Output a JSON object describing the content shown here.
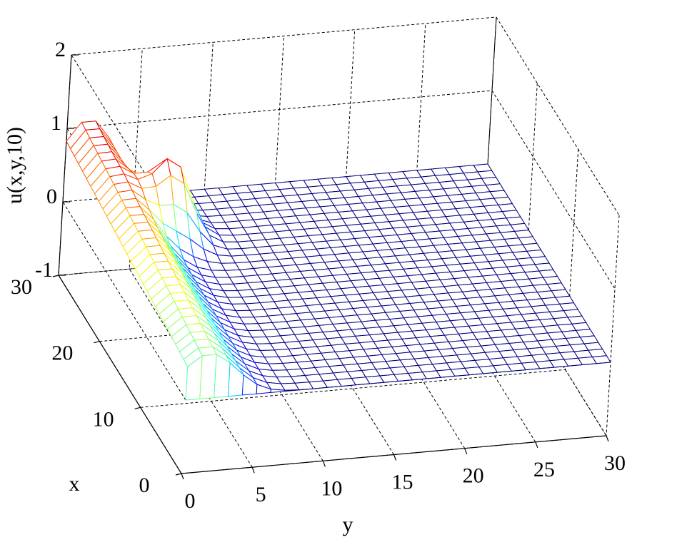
{
  "chart_data": {
    "type": "surface-mesh",
    "title": "",
    "xlabel": "x",
    "ylabel": "y",
    "zlabel": "u(x,y,10)",
    "xlim": [
      0,
      30
    ],
    "ylim": [
      0,
      30
    ],
    "zlim": [
      -1,
      2
    ],
    "x_ticks": [
      "0",
      "10",
      "20",
      "30"
    ],
    "y_ticks": [
      "0",
      "5",
      "10",
      "15",
      "20",
      "25",
      "30"
    ],
    "z_ticks": [
      "-1",
      "0",
      "1",
      "2"
    ],
    "grid": true,
    "colormap": "jet",
    "mesh_resolution": 30,
    "surface": {
      "baseline": 0,
      "ridge": {
        "along": "x",
        "y_center": 1.5,
        "y_width": 2.8,
        "peak": 1.1
      },
      "hump": {
        "x_center": 23,
        "y_center": 5.5,
        "sigma_x": 2.5,
        "sigma_y": 1.8,
        "peak": 1.0
      }
    },
    "colors": {
      "low": "#00008f",
      "mid": "#7fff7f",
      "high": "#800000"
    }
  }
}
